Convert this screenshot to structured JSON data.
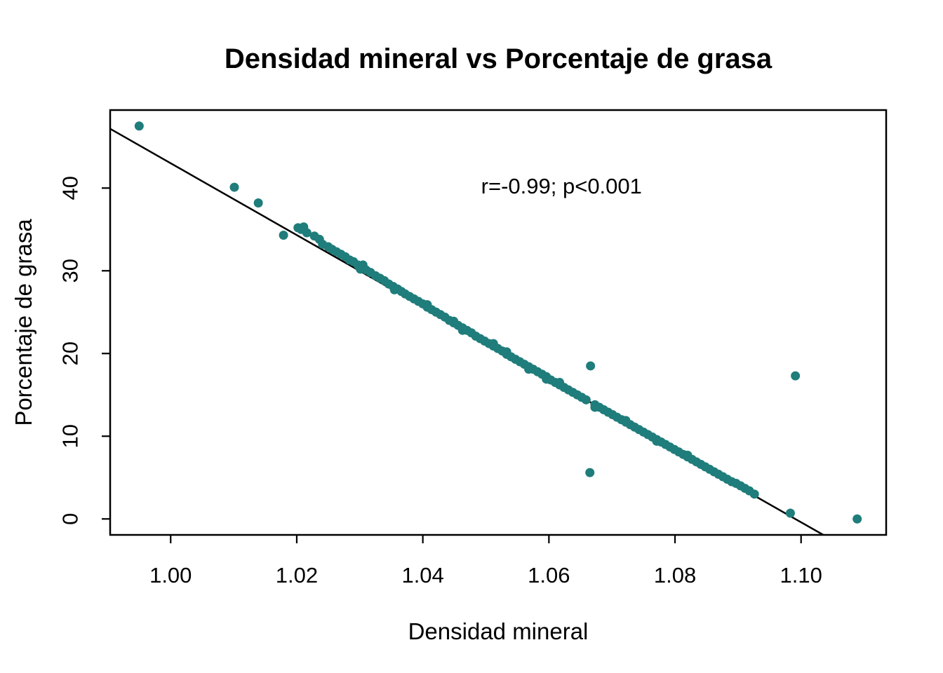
{
  "chart_data": {
    "type": "scatter",
    "title": "Densidad mineral vs Porcentaje de grasa",
    "xlabel": "Densidad mineral",
    "ylabel": "Porcentaje de grasa",
    "annotation": {
      "text": "r=-0.99; p<0.001",
      "x": 1.062,
      "y": 40.2
    },
    "xlim": [
      0.9904,
      1.1135
    ],
    "ylim": [
      -1.93,
      49.43
    ],
    "xticks": [
      1.0,
      1.02,
      1.04,
      1.06,
      1.08,
      1.1
    ],
    "xtick_labels": [
      "1.00",
      "1.02",
      "1.04",
      "1.06",
      "1.08",
      "1.10"
    ],
    "yticks": [
      0,
      10,
      20,
      30,
      40
    ],
    "ytick_labels": [
      "0",
      "10",
      "20",
      "30",
      "40"
    ],
    "grid": false,
    "legend": null,
    "point_color": "#1f7d7b",
    "line_color": "#000000",
    "background_color": "#ffffff",
    "regression_line": {
      "intercept": 477.0,
      "slope": -434.0
    },
    "points": [
      [
        0.995,
        47.5
      ],
      [
        1.0101,
        40.1
      ],
      [
        1.0139,
        38.2
      ],
      [
        1.0179,
        34.3
      ],
      [
        1.0202,
        35.2
      ],
      [
        1.0207,
        35.0
      ],
      [
        1.0211,
        35.3
      ],
      [
        1.0216,
        34.6
      ],
      [
        1.0228,
        34.2
      ],
      [
        1.0236,
        33.8
      ],
      [
        1.0241,
        33.2
      ],
      [
        1.025,
        32.9
      ],
      [
        1.0256,
        32.6
      ],
      [
        1.0263,
        32.3
      ],
      [
        1.027,
        32.0
      ],
      [
        1.0277,
        31.7
      ],
      [
        1.0284,
        31.3
      ],
      [
        1.029,
        31.1
      ],
      [
        1.0297,
        30.7
      ],
      [
        1.0301,
        30.2
      ],
      [
        1.0304,
        30.4
      ],
      [
        1.0305,
        30.7
      ],
      [
        1.031,
        30.1
      ],
      [
        1.0317,
        29.8
      ],
      [
        1.0325,
        29.4
      ],
      [
        1.0332,
        29.1
      ],
      [
        1.0339,
        28.8
      ],
      [
        1.0346,
        28.4
      ],
      [
        1.0353,
        28.1
      ],
      [
        1.0355,
        27.7
      ],
      [
        1.036,
        27.8
      ],
      [
        1.0366,
        27.5
      ],
      [
        1.0372,
        27.2
      ],
      [
        1.0379,
        26.9
      ],
      [
        1.0386,
        26.6
      ],
      [
        1.0393,
        26.3
      ],
      [
        1.04,
        26.0
      ],
      [
        1.0407,
        25.9
      ],
      [
        1.0407,
        25.6
      ],
      [
        1.0414,
        25.3
      ],
      [
        1.0421,
        25.0
      ],
      [
        1.0428,
        24.7
      ],
      [
        1.0435,
        24.4
      ],
      [
        1.0442,
        24.0
      ],
      [
        1.0449,
        23.9
      ],
      [
        1.0449,
        23.7
      ],
      [
        1.0456,
        23.4
      ],
      [
        1.0463,
        23.1
      ],
      [
        1.0463,
        22.8
      ],
      [
        1.047,
        22.8
      ],
      [
        1.0477,
        22.5
      ],
      [
        1.0484,
        22.1
      ],
      [
        1.0491,
        21.8
      ],
      [
        1.0498,
        21.5
      ],
      [
        1.0505,
        21.2
      ],
      [
        1.0512,
        20.9
      ],
      [
        1.0512,
        21.2
      ],
      [
        1.0519,
        20.6
      ],
      [
        1.0526,
        20.3
      ],
      [
        1.0533,
        20.2
      ],
      [
        1.0533,
        19.9
      ],
      [
        1.054,
        19.6
      ],
      [
        1.0547,
        19.3
      ],
      [
        1.0554,
        19.0
      ],
      [
        1.0561,
        18.7
      ],
      [
        1.0568,
        18.4
      ],
      [
        1.0568,
        18.1
      ],
      [
        1.0575,
        18.1
      ],
      [
        1.0582,
        17.8
      ],
      [
        1.0589,
        17.5
      ],
      [
        1.0596,
        17.2
      ],
      [
        1.0596,
        16.9
      ],
      [
        1.0603,
        16.8
      ],
      [
        1.061,
        16.5
      ],
      [
        1.0617,
        16.2
      ],
      [
        1.0617,
        16.5
      ],
      [
        1.0624,
        15.9
      ],
      [
        1.0631,
        15.6
      ],
      [
        1.0638,
        15.3
      ],
      [
        1.0645,
        15.0
      ],
      [
        1.0652,
        14.7
      ],
      [
        1.0659,
        14.4
      ],
      [
        1.0665,
        5.6
      ],
      [
        1.0666,
        18.5
      ],
      [
        1.0673,
        13.8
      ],
      [
        1.0673,
        13.5
      ],
      [
        1.068,
        13.5
      ],
      [
        1.0687,
        13.2
      ],
      [
        1.0694,
        12.9
      ],
      [
        1.0701,
        12.6
      ],
      [
        1.0708,
        12.3
      ],
      [
        1.0715,
        12.0
      ],
      [
        1.0722,
        11.7
      ],
      [
        1.0722,
        11.9
      ],
      [
        1.0729,
        11.4
      ],
      [
        1.0736,
        11.1
      ],
      [
        1.0743,
        10.8
      ],
      [
        1.075,
        10.5
      ],
      [
        1.0757,
        10.2
      ],
      [
        1.0764,
        9.9
      ],
      [
        1.0771,
        9.6
      ],
      [
        1.0771,
        9.4
      ],
      [
        1.0778,
        9.3
      ],
      [
        1.0785,
        9.0
      ],
      [
        1.0792,
        8.7
      ],
      [
        1.0799,
        8.4
      ],
      [
        1.0806,
        8.1
      ],
      [
        1.0813,
        7.8
      ],
      [
        1.082,
        7.5
      ],
      [
        1.082,
        7.7
      ],
      [
        1.0827,
        7.2
      ],
      [
        1.0834,
        6.9
      ],
      [
        1.0841,
        6.6
      ],
      [
        1.0848,
        6.3
      ],
      [
        1.0855,
        6.0
      ],
      [
        1.0862,
        5.7
      ],
      [
        1.0869,
        5.4
      ],
      [
        1.0876,
        5.1
      ],
      [
        1.0883,
        4.8
      ],
      [
        1.089,
        4.5
      ],
      [
        1.0897,
        4.3
      ],
      [
        1.0904,
        4.0
      ],
      [
        1.0911,
        3.7
      ],
      [
        1.0918,
        3.4
      ],
      [
        1.0926,
        3.0
      ],
      [
        1.0983,
        0.7
      ],
      [
        1.0991,
        17.3
      ],
      [
        1.1089,
        0.0
      ]
    ]
  }
}
